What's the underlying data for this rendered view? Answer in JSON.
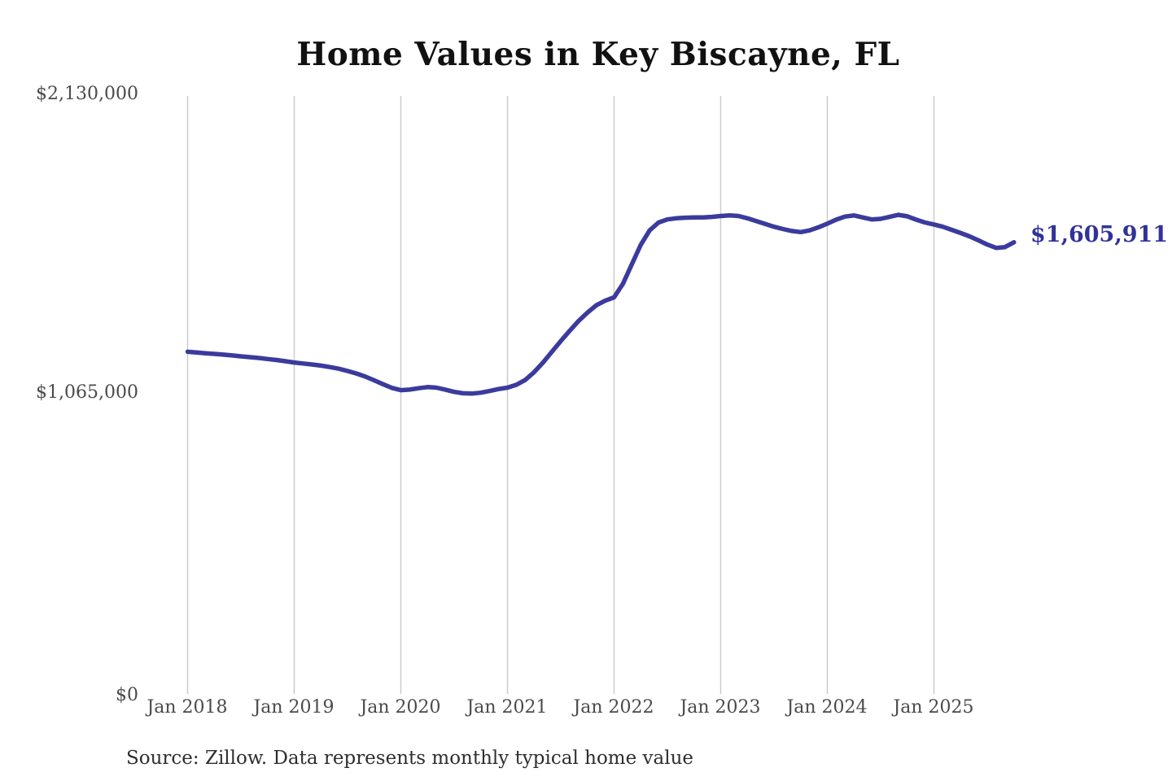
{
  "chart_data": {
    "type": "line",
    "title": "Home Values in Key Biscayne, FL",
    "source_note": "Source: Zillow. Data represents monthly typical home value",
    "end_label": "$1,605,911",
    "final_value": 1605911,
    "line_color": "#3b3b9d",
    "end_label_color": "#32329a",
    "grid_color": "#cccccc",
    "grid": "vertical-only",
    "legend": "none",
    "ylim": [
      0,
      2130000
    ],
    "ylabel": "",
    "xlabel": "",
    "y_ticks": [
      {
        "label": "$0",
        "value": 0
      },
      {
        "label": "$1,065,000",
        "value": 1065000
      },
      {
        "label": "$2,130,000",
        "value": 2130000
      }
    ],
    "x_ticks": [
      "Jan 2018",
      "Jan 2019",
      "Jan 2020",
      "Jan 2021",
      "Jan 2022",
      "Jan 2023",
      "Jan 2024",
      "Jan 2025"
    ],
    "x": [
      "2018-01",
      "2018-02",
      "2018-03",
      "2018-04",
      "2018-05",
      "2018-06",
      "2018-07",
      "2018-08",
      "2018-09",
      "2018-10",
      "2018-11",
      "2018-12",
      "2019-01",
      "2019-02",
      "2019-03",
      "2019-04",
      "2019-05",
      "2019-06",
      "2019-07",
      "2019-08",
      "2019-09",
      "2019-10",
      "2019-11",
      "2019-12",
      "2020-01",
      "2020-02",
      "2020-03",
      "2020-04",
      "2020-05",
      "2020-06",
      "2020-07",
      "2020-08",
      "2020-09",
      "2020-10",
      "2020-11",
      "2020-12",
      "2021-01",
      "2021-02",
      "2021-03",
      "2021-04",
      "2021-05",
      "2021-06",
      "2021-07",
      "2021-08",
      "2021-09",
      "2021-10",
      "2021-11",
      "2021-12",
      "2022-01",
      "2022-02",
      "2022-03",
      "2022-04",
      "2022-05",
      "2022-06",
      "2022-07",
      "2022-08",
      "2022-09",
      "2022-10",
      "2022-11",
      "2022-12",
      "2023-01",
      "2023-02",
      "2023-03",
      "2023-04",
      "2023-05",
      "2023-06",
      "2023-07",
      "2023-08",
      "2023-09",
      "2023-10",
      "2023-11",
      "2023-12",
      "2024-01",
      "2024-02",
      "2024-03",
      "2024-04",
      "2024-05",
      "2024-06",
      "2024-07",
      "2024-08",
      "2024-09",
      "2024-10",
      "2024-11",
      "2024-12",
      "2025-01",
      "2025-02",
      "2025-03",
      "2025-04",
      "2025-05",
      "2025-06",
      "2025-07",
      "2025-08",
      "2025-09",
      "2025-10"
    ],
    "series": [
      {
        "name": "Typical home value",
        "values": [
          1218000,
          1215500,
          1213000,
          1210500,
          1208000,
          1205000,
          1202000,
          1199000,
          1196000,
          1192500,
          1189000,
          1184500,
          1180000,
          1176500,
          1173000,
          1169000,
          1164000,
          1158000,
          1150000,
          1141000,
          1130000,
          1117000,
          1103000,
          1090000,
          1082000,
          1084000,
          1089000,
          1093000,
          1091000,
          1084000,
          1076000,
          1071000,
          1070000,
          1073000,
          1079000,
          1086000,
          1091000,
          1101000,
          1118000,
          1146000,
          1180000,
          1218000,
          1256000,
          1292000,
          1327000,
          1357000,
          1383000,
          1399000,
          1411000,
          1459000,
          1528000,
          1597000,
          1648000,
          1676000,
          1687000,
          1691000,
          1693000,
          1694000,
          1694000,
          1696000,
          1699000,
          1701000,
          1699000,
          1691000,
          1681000,
          1671000,
          1661000,
          1653000,
          1646000,
          1642000,
          1648000,
          1659000,
          1672000,
          1686000,
          1697000,
          1701000,
          1694000,
          1687000,
          1689000,
          1696000,
          1703000,
          1698000,
          1686000,
          1676000,
          1669000,
          1661000,
          1650000,
          1639000,
          1627000,
          1613000,
          1598000,
          1586000,
          1589000,
          1605911
        ]
      }
    ]
  }
}
